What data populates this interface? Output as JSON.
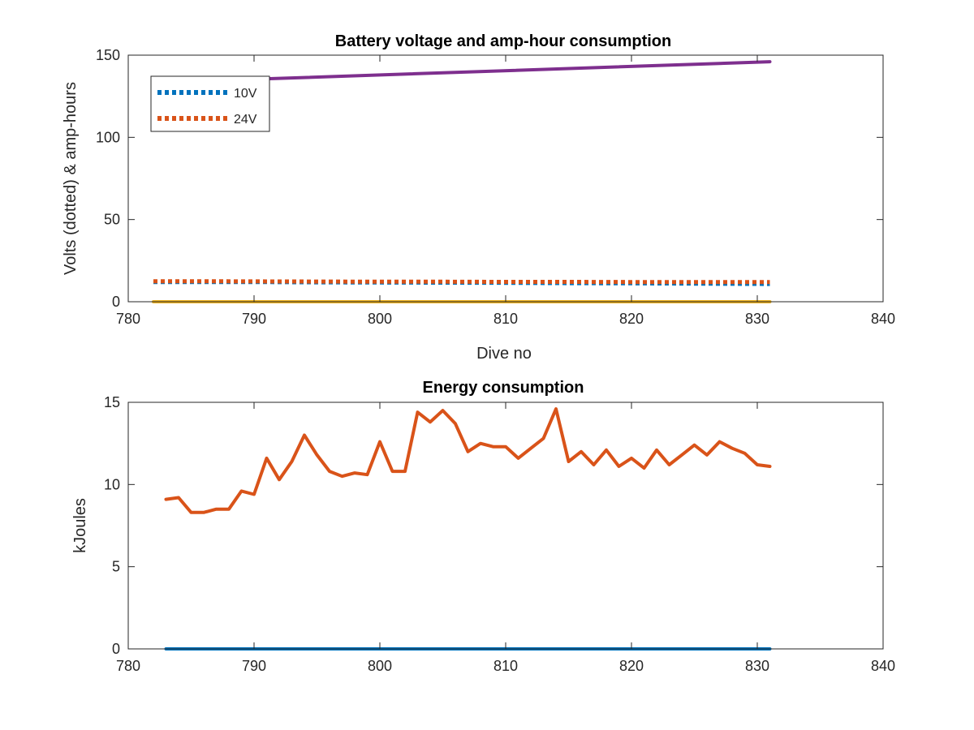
{
  "chart_data": [
    {
      "type": "line",
      "title": "Battery voltage and amp-hour consumption",
      "xlabel": "Dive no",
      "ylabel": "Volts (dotted) & amp-hours",
      "xlim": [
        780,
        840
      ],
      "ylim": [
        0,
        150
      ],
      "xticks": [
        "780",
        "790",
        "800",
        "810",
        "820",
        "830",
        "840"
      ],
      "yticks": [
        "0",
        "50",
        "100",
        "150"
      ],
      "grid": false,
      "legend_position": "top-left",
      "series": [
        {
          "name": "10V",
          "color": "#0072BD",
          "style": "dotted",
          "x": [
            782,
            785,
            790,
            795,
            800,
            805,
            810,
            815,
            820,
            825,
            831
          ],
          "y": [
            12,
            12,
            12,
            11.8,
            11.7,
            11.6,
            11.5,
            11.3,
            11.2,
            11.0,
            10.8
          ]
        },
        {
          "name": "24V",
          "color": "#D95319",
          "style": "dotted",
          "x": [
            782,
            785,
            790,
            795,
            800,
            805,
            810,
            815,
            820,
            825,
            831
          ],
          "y": [
            12.5,
            12.5,
            12.4,
            12.3,
            12.2,
            12.2,
            12.1,
            12.1,
            12.0,
            12.0,
            12.0
          ]
        },
        {
          "color": "#EDB120",
          "style": "solid",
          "x": [
            782,
            831
          ],
          "y": [
            0,
            0
          ]
        },
        {
          "color": "#7E2F8E",
          "style": "solid",
          "x": [
            790.5,
            831
          ],
          "y": [
            135.5,
            146
          ]
        }
      ]
    },
    {
      "type": "line",
      "title": "Energy consumption",
      "xlabel": "",
      "ylabel": "kJoules",
      "xlim": [
        780,
        840
      ],
      "ylim": [
        0,
        15
      ],
      "xticks": [
        "780",
        "790",
        "800",
        "810",
        "820",
        "830",
        "840"
      ],
      "yticks": [
        "0",
        "5",
        "10",
        "15"
      ],
      "grid": false,
      "series": [
        {
          "color": "#0072BD",
          "style": "solid",
          "x": [
            783,
            831
          ],
          "y": [
            0,
            0
          ]
        },
        {
          "color": "#D95319",
          "style": "solid",
          "x": [
            783,
            784,
            785,
            786,
            787,
            788,
            789,
            790,
            791,
            792,
            793,
            794,
            795,
            796,
            797,
            798,
            799,
            800,
            801,
            802,
            803,
            804,
            805,
            806,
            807,
            808,
            809,
            810,
            811,
            812,
            813,
            814,
            815,
            816,
            817,
            818,
            819,
            820,
            821,
            822,
            823,
            824,
            825,
            826,
            827,
            828,
            829,
            830,
            831
          ],
          "y": [
            9.1,
            9.2,
            8.3,
            8.3,
            8.5,
            8.5,
            9.6,
            9.4,
            11.6,
            10.3,
            11.4,
            13.0,
            11.8,
            10.8,
            10.5,
            10.7,
            10.6,
            12.6,
            10.8,
            10.8,
            14.4,
            13.8,
            14.5,
            13.7,
            12.0,
            12.5,
            12.3,
            12.3,
            11.6,
            12.2,
            12.8,
            14.6,
            11.4,
            12.0,
            11.2,
            12.1,
            11.1,
            11.6,
            11.0,
            12.1,
            11.2,
            11.8,
            12.4,
            11.8,
            12.6,
            12.2,
            11.9,
            11.2,
            11.1
          ]
        }
      ]
    }
  ]
}
